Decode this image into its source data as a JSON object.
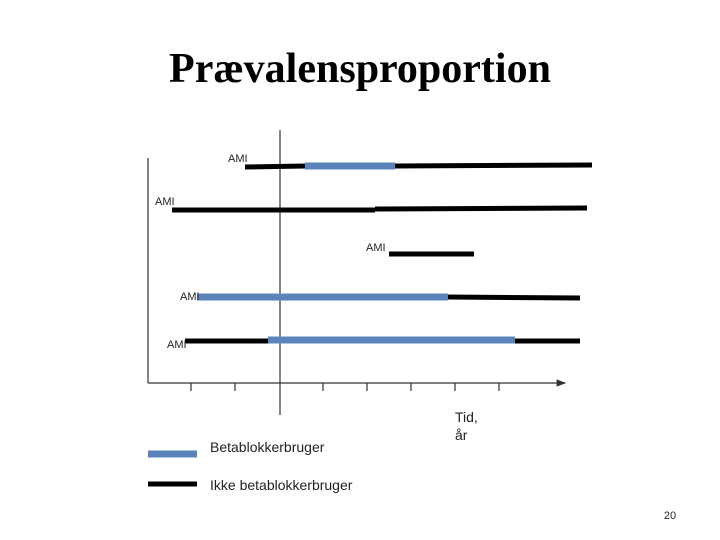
{
  "title": "Prævalensproportion",
  "rows": [
    {
      "label": "AMI"
    },
    {
      "label": "AMI"
    },
    {
      "label": "AMI"
    },
    {
      "label": "AMI"
    },
    {
      "label": "AMI"
    }
  ],
  "axis_label": [
    "Tid,",
    "år"
  ],
  "legend": [
    {
      "label": "Betablokkerbruger"
    },
    {
      "label": "Ikke betablokkerbruger"
    }
  ],
  "page_number": "20"
}
